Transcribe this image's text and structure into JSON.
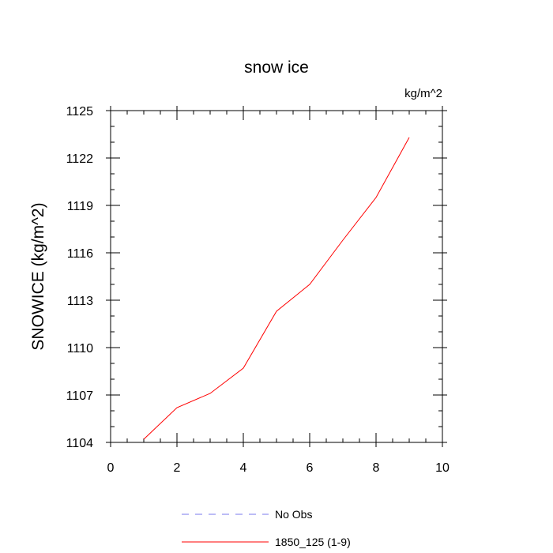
{
  "chart_data": {
    "type": "line",
    "title": "snow ice",
    "units": "kg/m^2",
    "xlabel": "",
    "ylabel": "SNOWICE  (kg/m^2)",
    "xlim": [
      0,
      10
    ],
    "ylim": [
      1104,
      1125
    ],
    "xticks": [
      0,
      2,
      4,
      6,
      8,
      10
    ],
    "yticks": [
      1104,
      1107,
      1110,
      1113,
      1116,
      1119,
      1122,
      1125
    ],
    "grid": false,
    "legend_position": "bottom-center",
    "series": [
      {
        "name": "No Obs",
        "color": "#7a7aee",
        "style": "dashed",
        "x": [],
        "y": []
      },
      {
        "name": "1850_125 (1-9)",
        "color": "#ff0000",
        "style": "solid",
        "x": [
          1,
          2,
          3,
          4,
          5,
          6,
          7,
          8,
          9
        ],
        "y": [
          1104.2,
          1106.2,
          1107.1,
          1108.7,
          1112.3,
          1114.0,
          1116.8,
          1119.5,
          1123.3
        ]
      }
    ]
  }
}
